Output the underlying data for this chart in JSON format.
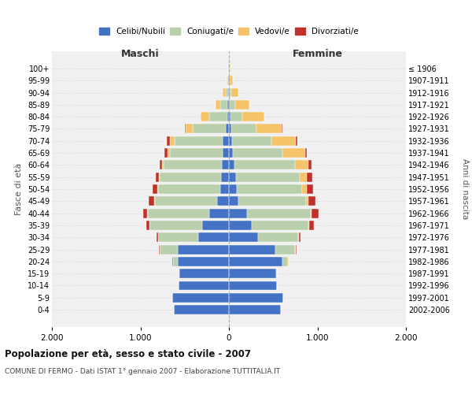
{
  "age_groups": [
    "0-4",
    "5-9",
    "10-14",
    "15-19",
    "20-24",
    "25-29",
    "30-34",
    "35-39",
    "40-44",
    "45-49",
    "50-54",
    "55-59",
    "60-64",
    "65-69",
    "70-74",
    "75-79",
    "80-84",
    "85-89",
    "90-94",
    "95-99",
    "100+"
  ],
  "birth_years": [
    "2002-2006",
    "1997-2001",
    "1992-1996",
    "1987-1991",
    "1982-1986",
    "1977-1981",
    "1972-1976",
    "1967-1971",
    "1962-1966",
    "1957-1961",
    "1952-1956",
    "1947-1951",
    "1942-1946",
    "1937-1941",
    "1932-1936",
    "1927-1931",
    "1922-1926",
    "1917-1921",
    "1912-1916",
    "1907-1911",
    "≤ 1906"
  ],
  "male_celibe": [
    620,
    640,
    570,
    560,
    580,
    580,
    350,
    300,
    220,
    130,
    100,
    90,
    80,
    75,
    70,
    40,
    20,
    15,
    10,
    8,
    5
  ],
  "male_coniugato": [
    0,
    0,
    2,
    8,
    50,
    200,
    450,
    600,
    700,
    710,
    700,
    690,
    660,
    590,
    540,
    370,
    200,
    80,
    30,
    10,
    5
  ],
  "male_vedovo": [
    0,
    0,
    0,
    1,
    2,
    2,
    2,
    2,
    3,
    5,
    8,
    10,
    15,
    30,
    60,
    80,
    100,
    60,
    30,
    10,
    2
  ],
  "male_divorziato": [
    0,
    0,
    0,
    2,
    5,
    10,
    15,
    30,
    50,
    60,
    50,
    40,
    30,
    30,
    30,
    10,
    0,
    0,
    0,
    0,
    0
  ],
  "female_celibe": [
    590,
    610,
    540,
    530,
    600,
    520,
    330,
    260,
    200,
    110,
    90,
    80,
    65,
    48,
    38,
    28,
    18,
    12,
    8,
    6,
    4
  ],
  "female_coniugato": [
    0,
    0,
    2,
    12,
    70,
    230,
    450,
    640,
    720,
    760,
    740,
    720,
    680,
    560,
    440,
    280,
    130,
    60,
    20,
    5,
    2
  ],
  "female_vedovo": [
    0,
    0,
    0,
    2,
    3,
    5,
    8,
    10,
    15,
    30,
    50,
    80,
    150,
    250,
    280,
    290,
    250,
    160,
    80,
    30,
    10
  ],
  "female_divorziato": [
    0,
    0,
    0,
    2,
    5,
    10,
    20,
    50,
    80,
    80,
    70,
    60,
    40,
    20,
    15,
    5,
    0,
    0,
    0,
    0,
    0
  ],
  "colors": {
    "celibe": "#4472C4",
    "coniugato": "#BACFAB",
    "vedovo": "#F5C46A",
    "divorziato": "#C0312B"
  },
  "title": "Popolazione per età, sesso e stato civile - 2007",
  "subtitle": "COMUNE DI FERMO - Dati ISTAT 1° gennaio 2007 - Elaborazione TUTTITALIA.IT",
  "xlabel_left": "Maschi",
  "xlabel_right": "Femmine",
  "ylabel_left": "Fasce di età",
  "ylabel_right": "Anni di nascita",
  "xlim": 2000,
  "bg_color": "#ffffff",
  "plot_bg": "#f0f0f0",
  "grid_color": "#dddddd"
}
